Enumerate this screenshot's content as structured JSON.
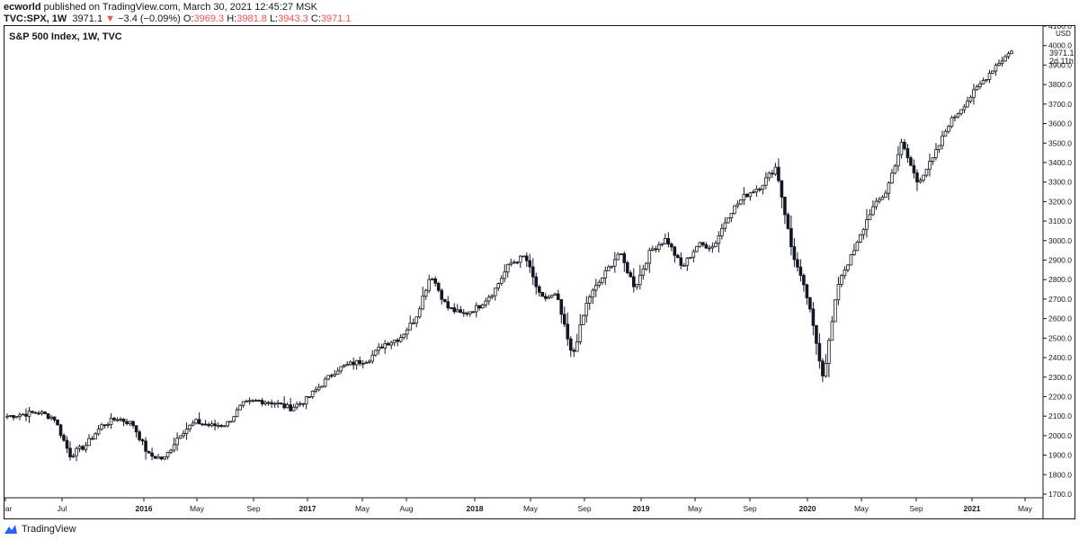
{
  "header": {
    "publisher": "ecworld",
    "published_text": " published on TradingView.com, March 30, 2021 12:45:27 MSK",
    "symbol": "TVC:SPX, 1W",
    "last": "3971.1",
    "change": "−3.4 (−0.09%)",
    "o_label": "O:",
    "o_value": "3969.3",
    "h_label": "H:",
    "h_value": "3981.8",
    "l_label": "L:",
    "l_value": "3943.3",
    "c_label": "C:",
    "c_value": "3971.1",
    "down_arrow": "▼"
  },
  "chart_title": "S&P 500 Index, 1W, TVC",
  "footer": {
    "brand": "TradingView"
  },
  "price_label": {
    "value": "3971.1",
    "countdown": "2d 11h",
    "currency": "USD"
  },
  "colors": {
    "candle": "#131722",
    "down": "#ef5350",
    "axis": "#131722",
    "brand": "#2962ff"
  },
  "chart_data": {
    "type": "candlestick",
    "title": "S&P 500 Index, 1W, TVC",
    "ylim": [
      1700,
      4100
    ],
    "y_ticks": [
      "1700.0",
      "1800.0",
      "1900.0",
      "2000.0",
      "2100.0",
      "2200.0",
      "2300.0",
      "2400.0",
      "2500.0",
      "2600.0",
      "2700.0",
      "2800.0",
      "2900.0",
      "3000.0",
      "3100.0",
      "3200.0",
      "3300.0",
      "3400.0",
      "3500.0",
      "3600.0",
      "3700.0",
      "3800.0",
      "3900.0",
      "4000.0",
      "4100.0"
    ],
    "x_ticks": [
      {
        "label": "Mar",
        "bold": false
      },
      {
        "label": "Jul",
        "bold": false
      },
      {
        "label": "2016",
        "bold": true
      },
      {
        "label": "May",
        "bold": false
      },
      {
        "label": "Sep",
        "bold": false
      },
      {
        "label": "2017",
        "bold": true
      },
      {
        "label": "May",
        "bold": false
      },
      {
        "label": "Aug",
        "bold": false
      },
      {
        "label": "2018",
        "bold": true
      },
      {
        "label": "May",
        "bold": false
      },
      {
        "label": "Sep",
        "bold": false
      },
      {
        "label": "2019",
        "bold": true
      },
      {
        "label": "May",
        "bold": false
      },
      {
        "label": "Sep",
        "bold": false
      },
      {
        "label": "2020",
        "bold": true
      },
      {
        "label": "May",
        "bold": false
      },
      {
        "label": "Sep",
        "bold": false
      },
      {
        "label": "2021",
        "bold": true
      },
      {
        "label": "May",
        "bold": false
      }
    ],
    "anchors": [
      [
        "2015-03",
        2100
      ],
      [
        "2015-05",
        2110
      ],
      [
        "2015-07",
        2120
      ],
      [
        "2015-08",
        2090
      ],
      [
        "2015-08b",
        1900
      ],
      [
        "2015-09",
        1950
      ],
      [
        "2015-10",
        2050
      ],
      [
        "2015-11",
        2090
      ],
      [
        "2015-12",
        2060
      ],
      [
        "2016-01",
        1900
      ],
      [
        "2016-02",
        1880
      ],
      [
        "2016-03",
        2010
      ],
      [
        "2016-04",
        2070
      ],
      [
        "2016-05",
        2050
      ],
      [
        "2016-06",
        2060
      ],
      [
        "2016-07",
        2160
      ],
      [
        "2016-08",
        2180
      ],
      [
        "2016-09",
        2170
      ],
      [
        "2016-10",
        2140
      ],
      [
        "2016-11",
        2180
      ],
      [
        "2016-12",
        2260
      ],
      [
        "2017-02",
        2340
      ],
      [
        "2017-03",
        2370
      ],
      [
        "2017-05",
        2390
      ],
      [
        "2017-07",
        2470
      ],
      [
        "2017-09",
        2500
      ],
      [
        "2017-11",
        2600
      ],
      [
        "2018-01",
        2830
      ],
      [
        "2018-02",
        2660
      ],
      [
        "2018-03",
        2620
      ],
      [
        "2018-04",
        2660
      ],
      [
        "2018-06",
        2740
      ],
      [
        "2018-08",
        2880
      ],
      [
        "2018-09",
        2920
      ],
      [
        "2018-10",
        2700
      ],
      [
        "2018-11",
        2720
      ],
      [
        "2018-12",
        2400
      ],
      [
        "2019-01",
        2700
      ],
      [
        "2019-03",
        2820
      ],
      [
        "2019-04",
        2940
      ],
      [
        "2019-05",
        2760
      ],
      [
        "2019-06",
        2950
      ],
      [
        "2019-07",
        3010
      ],
      [
        "2019-08",
        2860
      ],
      [
        "2019-09",
        2980
      ],
      [
        "2019-10",
        2970
      ],
      [
        "2019-11",
        3140
      ],
      [
        "2019-12",
        3230
      ],
      [
        "2020-01",
        3280
      ],
      [
        "2020-02a",
        3380
      ],
      [
        "2020-02b",
        2950
      ],
      [
        "2020-03a",
        2700
      ],
      [
        "2020-03b",
        2300
      ],
      [
        "2020-04",
        2800
      ],
      [
        "2020-05",
        2950
      ],
      [
        "2020-06",
        3150
      ],
      [
        "2020-07",
        3250
      ],
      [
        "2020-08",
        3500
      ],
      [
        "2020-09",
        3300
      ],
      [
        "2020-10",
        3420
      ],
      [
        "2020-11",
        3600
      ],
      [
        "2020-12",
        3700
      ],
      [
        "2021-01",
        3800
      ],
      [
        "2021-02",
        3900
      ],
      [
        "2021-03",
        3971
      ]
    ]
  }
}
